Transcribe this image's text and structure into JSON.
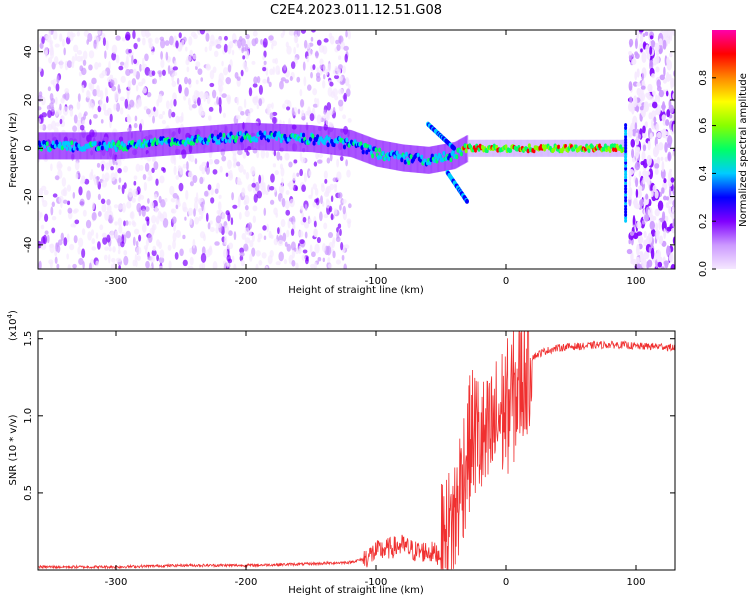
{
  "title": "C2E4.2023.011.12.51.G08",
  "colors": {
    "snr_line": "#f03030",
    "frame": "#000000",
    "colormap_stops": [
      "#f5e8ff",
      "#cc99ff",
      "#8000ff",
      "#0000ff",
      "#00ccff",
      "#00ff66",
      "#88ff00",
      "#ffff00",
      "#ff8800",
      "#ff0000",
      "#ff00aa"
    ]
  },
  "chart_data": [
    {
      "type": "heatmap",
      "name": "spectrogram",
      "xlabel": "Height of straight line (km)",
      "ylabel": "Frequency (Hz)",
      "xlim": [
        -360,
        130
      ],
      "ylim": [
        -50,
        49
      ],
      "xticks": [
        -300,
        -200,
        -100,
        0,
        100
      ],
      "xtick_labels": [
        "-300",
        "-200",
        "-100",
        "0",
        "100"
      ],
      "yticks": [
        -40,
        -20,
        0,
        20,
        40
      ],
      "ytick_labels": [
        "-40",
        "-20",
        "0",
        "20",
        "40"
      ],
      "colorbar": {
        "label": "Normalized spectral amplitude",
        "range": [
          0,
          1
        ],
        "ticks": [
          0.0,
          0.2,
          0.4,
          0.6,
          0.8
        ],
        "tick_labels": [
          "0.0",
          "0.2",
          "0.4",
          "0.6",
          "0.8"
        ]
      },
      "ridge": [
        {
          "x": -300,
          "f": 1
        },
        {
          "x": -250,
          "f": 3
        },
        {
          "x": -200,
          "f": 5
        },
        {
          "x": -150,
          "f": 4
        },
        {
          "x": -120,
          "f": 2
        },
        {
          "x": -100,
          "f": -2
        },
        {
          "x": -80,
          "f": -4
        },
        {
          "x": -60,
          "f": -5
        },
        {
          "x": -40,
          "f": -3
        },
        {
          "x": -30,
          "f": 0
        },
        {
          "x": 0,
          "f": 0
        },
        {
          "x": 90,
          "f": 0
        }
      ],
      "branches": [
        {
          "from": [
            -60,
            10
          ],
          "to": [
            -40,
            0
          ]
        },
        {
          "from": [
            -45,
            -10
          ],
          "to": [
            -30,
            -22
          ]
        }
      ],
      "noise_regions": [
        [
          -360,
          -120
        ],
        [
          95,
          130
        ]
      ]
    },
    {
      "type": "line",
      "name": "snr",
      "xlabel": "Height of straight line (km)",
      "ylabel": "SNR (10 * v/v)",
      "y_scale_label": "(x10",
      "y_scale_exponent": "4",
      "y_scale_close": ")",
      "xlim": [
        -360,
        130
      ],
      "ylim": [
        0,
        1.55
      ],
      "xticks": [
        -300,
        -200,
        -100,
        0,
        100
      ],
      "xtick_labels": [
        "-300",
        "-200",
        "-100",
        "0",
        "100"
      ],
      "yticks": [
        0.5,
        1.0,
        1.5
      ],
      "ytick_labels": [
        "0.5",
        "1.0",
        "1.5"
      ],
      "series": [
        {
          "x": [
            -360,
            -300,
            -250,
            -200,
            -150,
            -120,
            -110,
            -100,
            -90,
            -80,
            -70,
            -60,
            -50,
            -45,
            -40,
            -35,
            -30,
            -25,
            -20,
            -15,
            -10,
            -5,
            0,
            5,
            10,
            15,
            20,
            30,
            40,
            50,
            60,
            70,
            80,
            90,
            100,
            110,
            120,
            130
          ],
          "y": [
            0.02,
            0.02,
            0.03,
            0.03,
            0.04,
            0.05,
            0.07,
            0.12,
            0.14,
            0.16,
            0.12,
            0.12,
            0.1,
            0.2,
            0.3,
            0.55,
            0.75,
            0.9,
            0.85,
            0.8,
            0.9,
            1.0,
            1.05,
            1.1,
            1.2,
            1.3,
            1.38,
            1.42,
            1.44,
            1.45,
            1.45,
            1.46,
            1.46,
            1.46,
            1.45,
            1.45,
            1.45,
            1.44
          ]
        }
      ]
    }
  ]
}
